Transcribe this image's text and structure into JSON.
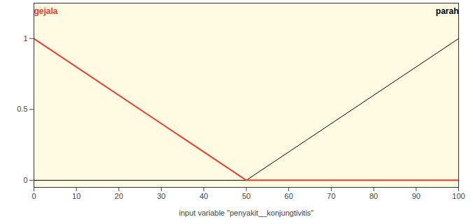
{
  "chart_data": {
    "type": "line",
    "xlabel": "input variable \"penyakit__konjungtivitis\"",
    "series": [
      {
        "name": "gejala",
        "color": "#ee3b2c",
        "x": [
          0,
          50,
          100
        ],
        "values": [
          1,
          0,
          0
        ]
      },
      {
        "name": "parah",
        "color": "#000000",
        "x": [
          0,
          50,
          100
        ],
        "values": [
          0,
          0,
          1
        ]
      }
    ],
    "xlim": [
      0,
      100
    ],
    "xticks": [
      0,
      10,
      20,
      30,
      40,
      50,
      60,
      70,
      80,
      90,
      100
    ],
    "ylim": [
      -0.05,
      1.25
    ],
    "yticks": [
      0,
      0.5,
      1
    ],
    "grid": false
  }
}
